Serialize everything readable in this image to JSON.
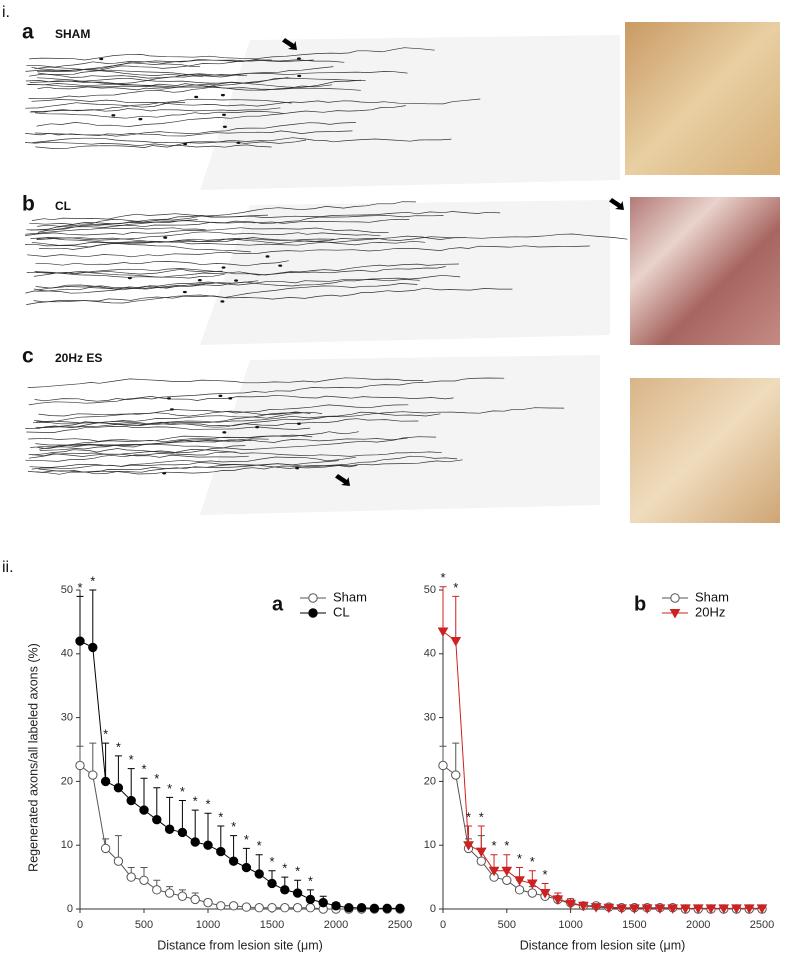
{
  "panel_labels": {
    "top": "i.",
    "bottom": "ii."
  },
  "tracings": [
    {
      "letter": "a",
      "label": "SHAM"
    },
    {
      "letter": "b",
      "label": "CL"
    },
    {
      "letter": "c",
      "label": "20Hz ES"
    }
  ],
  "chart_data": [
    {
      "type": "line",
      "panel_label": "a",
      "xlabel": "Distance from lesion site (μm)",
      "ylabel": "Regenerated axons/all labeled axons (%)",
      "x": [
        0,
        100,
        200,
        300,
        400,
        500,
        600,
        700,
        800,
        900,
        1000,
        1100,
        1200,
        1300,
        1400,
        1500,
        1600,
        1700,
        1800,
        1900,
        2000,
        2100,
        2200,
        2300,
        2400,
        2500
      ],
      "xlim": [
        0,
        2500
      ],
      "xticks": [
        0,
        500,
        1000,
        1500,
        2000,
        2500
      ],
      "ylim": [
        0,
        50
      ],
      "yticks": [
        0,
        10,
        20,
        30,
        40,
        50
      ],
      "series": [
        {
          "name": "Sham",
          "color": "#555555",
          "marker": "circle-open",
          "values": [
            22.5,
            21,
            9.5,
            7.5,
            5,
            4.5,
            3,
            2.5,
            2,
            1.5,
            1,
            0.5,
            0.5,
            0.3,
            0.2,
            0.2,
            0.2,
            0.2,
            0.2,
            0,
            0,
            0,
            0,
            0,
            0,
            0
          ],
          "errors": [
            3,
            5,
            1.5,
            4,
            1.5,
            2,
            1.5,
            1,
            1,
            1,
            0.5,
            0.3,
            0.3,
            0.3,
            0.3,
            0.3,
            0.3,
            0.3,
            0.3,
            0,
            0,
            0,
            0,
            0,
            0,
            0
          ]
        },
        {
          "name": "CL",
          "color": "#000000",
          "marker": "circle",
          "values": [
            42,
            41,
            20,
            19,
            17,
            15.5,
            14,
            12.5,
            12,
            10.5,
            10,
            9,
            7.5,
            6.5,
            5.5,
            4,
            3,
            2.5,
            1.5,
            1,
            0.5,
            0.2,
            0.2,
            0.1,
            0.1,
            0.1
          ],
          "errors": [
            7,
            9,
            6,
            5,
            5,
            5,
            5,
            5,
            5,
            5,
            5,
            4,
            4,
            3,
            3,
            2,
            2,
            2,
            1.5,
            1,
            0.5,
            0.3,
            0.2,
            0.2,
            0.2,
            0.2
          ],
          "significance": [
            "*",
            "*",
            "*",
            "*",
            "*",
            "*",
            "*",
            "*",
            "*",
            "*",
            "*",
            "*",
            "*",
            "*",
            "*",
            "*",
            "*",
            "*",
            "*",
            null,
            null,
            null,
            null,
            null,
            null,
            null
          ]
        }
      ]
    },
    {
      "type": "line",
      "panel_label": "b",
      "xlabel": "Distance from lesion site (μm)",
      "x": [
        0,
        100,
        200,
        300,
        400,
        500,
        600,
        700,
        800,
        900,
        1000,
        1100,
        1200,
        1300,
        1400,
        1500,
        1600,
        1700,
        1800,
        1900,
        2000,
        2100,
        2200,
        2300,
        2400,
        2500
      ],
      "xlim": [
        0,
        2500
      ],
      "xticks": [
        0,
        500,
        1000,
        1500,
        2000,
        2500
      ],
      "ylim": [
        0,
        50
      ],
      "yticks": [
        0,
        10,
        20,
        30,
        40,
        50
      ],
      "series": [
        {
          "name": "Sham",
          "color": "#555555",
          "marker": "circle-open",
          "values": [
            22.5,
            21,
            9.5,
            7.5,
            5,
            4.5,
            3,
            2.5,
            2,
            1.5,
            1,
            0.5,
            0.5,
            0.3,
            0.2,
            0.2,
            0.2,
            0.2,
            0.2,
            0,
            0,
            0,
            0,
            0,
            0,
            0
          ],
          "errors": [
            3,
            5,
            1.5,
            4,
            1.5,
            2,
            1.5,
            1,
            1,
            1,
            0.5,
            0.3,
            0.3,
            0.3,
            0.3,
            0.3,
            0.3,
            0.3,
            0.3,
            0,
            0,
            0,
            0,
            0,
            0,
            0
          ]
        },
        {
          "name": "20Hz",
          "color": "#cc2222",
          "marker": "triangle-down",
          "values": [
            43.5,
            42,
            10,
            9,
            6,
            6,
            4.5,
            4,
            2.5,
            1.5,
            0.8,
            0.5,
            0.3,
            0.2,
            0.1,
            0.1,
            0.1,
            0.1,
            0.1,
            0.1,
            0.1,
            0.1,
            0.1,
            0.1,
            0.1,
            0.1
          ],
          "errors": [
            7,
            7,
            3,
            4,
            2.5,
            2.5,
            2,
            2,
            1.5,
            1,
            0.8,
            0.5,
            0.3,
            0.2,
            0.2,
            0.2,
            0.2,
            0.2,
            0.2,
            0.2,
            0.2,
            0.2,
            0.2,
            0.2,
            0.2,
            0.2
          ],
          "significance": [
            "*",
            "*",
            "*",
            "*",
            "*",
            "*",
            "*",
            "*",
            "*",
            null,
            null,
            null,
            null,
            null,
            null,
            null,
            null,
            null,
            null,
            null,
            null,
            null,
            null,
            null,
            null,
            null
          ]
        }
      ]
    }
  ]
}
